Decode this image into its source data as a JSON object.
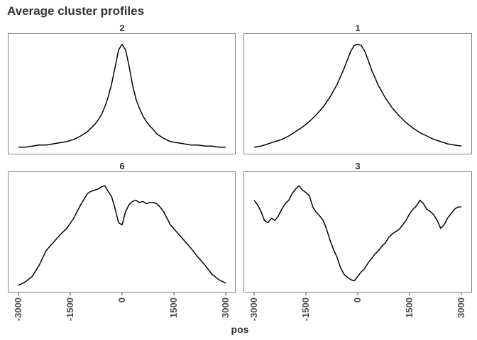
{
  "title": "Average cluster profiles",
  "colors": {
    "line": "#000000",
    "panel_border": "#7f7f7f",
    "text": "#333333"
  },
  "chart_data": {
    "type": "line",
    "title": "Average cluster profiles",
    "xlabel": "pos",
    "ylabel": "",
    "xlim": [
      -3000,
      3000
    ],
    "ylim": [
      0,
      1
    ],
    "x_ticks": [
      -3000,
      -1500,
      0,
      1500,
      3000
    ],
    "tick_labels": [
      "-3000",
      "-1500",
      "0",
      "1500",
      "3000"
    ],
    "layout": "2x2 facets, shared x axis on bottom row",
    "grid": false,
    "facets": [
      {
        "label": "2",
        "x": [
          -3000,
          -2800,
          -2600,
          -2400,
          -2200,
          -2000,
          -1800,
          -1600,
          -1400,
          -1200,
          -1000,
          -900,
          -800,
          -700,
          -600,
          -500,
          -400,
          -300,
          -200,
          -100,
          0,
          100,
          200,
          300,
          400,
          500,
          600,
          700,
          800,
          900,
          1000,
          1200,
          1400,
          1600,
          1800,
          2000,
          2200,
          2400,
          2600,
          2800,
          3000
        ],
        "values": [
          0.02,
          0.02,
          0.03,
          0.04,
          0.04,
          0.05,
          0.06,
          0.07,
          0.09,
          0.12,
          0.16,
          0.19,
          0.22,
          0.26,
          0.31,
          0.38,
          0.47,
          0.59,
          0.74,
          0.89,
          0.94,
          0.89,
          0.75,
          0.58,
          0.45,
          0.37,
          0.3,
          0.25,
          0.21,
          0.18,
          0.14,
          0.1,
          0.07,
          0.06,
          0.05,
          0.04,
          0.04,
          0.03,
          0.03,
          0.02,
          0.02
        ]
      },
      {
        "label": "1",
        "x": [
          -3000,
          -2800,
          -2600,
          -2400,
          -2200,
          -2000,
          -1800,
          -1600,
          -1400,
          -1200,
          -1000,
          -800,
          -600,
          -400,
          -300,
          -200,
          -100,
          0,
          100,
          200,
          300,
          400,
          600,
          800,
          1000,
          1200,
          1400,
          1600,
          1800,
          2000,
          2200,
          2400,
          2600,
          2800,
          3000
        ],
        "values": [
          0.02,
          0.03,
          0.05,
          0.07,
          0.09,
          0.12,
          0.16,
          0.2,
          0.25,
          0.31,
          0.38,
          0.47,
          0.58,
          0.72,
          0.8,
          0.88,
          0.93,
          0.94,
          0.93,
          0.88,
          0.8,
          0.71,
          0.57,
          0.46,
          0.37,
          0.3,
          0.24,
          0.19,
          0.15,
          0.12,
          0.09,
          0.07,
          0.05,
          0.04,
          0.03
        ]
      },
      {
        "label": "6",
        "x": [
          -3000,
          -2800,
          -2600,
          -2400,
          -2200,
          -2000,
          -1800,
          -1600,
          -1400,
          -1200,
          -1000,
          -900,
          -800,
          -700,
          -600,
          -500,
          -400,
          -300,
          -200,
          -100,
          0,
          100,
          200,
          300,
          400,
          500,
          600,
          700,
          800,
          900,
          1000,
          1100,
          1200,
          1400,
          1600,
          1800,
          2000,
          2200,
          2400,
          2600,
          2800,
          3000
        ],
        "values": [
          0.02,
          0.05,
          0.1,
          0.2,
          0.33,
          0.4,
          0.47,
          0.53,
          0.62,
          0.74,
          0.84,
          0.86,
          0.87,
          0.88,
          0.9,
          0.91,
          0.86,
          0.81,
          0.7,
          0.58,
          0.56,
          0.68,
          0.74,
          0.77,
          0.78,
          0.76,
          0.77,
          0.75,
          0.76,
          0.76,
          0.75,
          0.72,
          0.68,
          0.56,
          0.49,
          0.42,
          0.35,
          0.27,
          0.2,
          0.12,
          0.07,
          0.04
        ]
      },
      {
        "label": "3",
        "x": [
          -3000,
          -2900,
          -2800,
          -2700,
          -2600,
          -2500,
          -2400,
          -2300,
          -2200,
          -2100,
          -2000,
          -1900,
          -1800,
          -1700,
          -1600,
          -1500,
          -1400,
          -1300,
          -1200,
          -1100,
          -1000,
          -900,
          -800,
          -700,
          -600,
          -500,
          -400,
          -300,
          -200,
          -100,
          0,
          100,
          200,
          300,
          400,
          500,
          600,
          700,
          800,
          900,
          1000,
          1100,
          1200,
          1300,
          1400,
          1500,
          1600,
          1700,
          1800,
          1900,
          2000,
          2100,
          2200,
          2300,
          2400,
          2500,
          2600,
          2700,
          2800,
          2900,
          3000
        ],
        "values": [
          0.78,
          0.74,
          0.68,
          0.6,
          0.58,
          0.62,
          0.6,
          0.64,
          0.7,
          0.75,
          0.78,
          0.84,
          0.88,
          0.91,
          0.87,
          0.85,
          0.82,
          0.72,
          0.67,
          0.64,
          0.6,
          0.52,
          0.42,
          0.34,
          0.27,
          0.18,
          0.12,
          0.09,
          0.07,
          0.06,
          0.1,
          0.14,
          0.17,
          0.22,
          0.26,
          0.3,
          0.33,
          0.37,
          0.4,
          0.45,
          0.48,
          0.5,
          0.52,
          0.56,
          0.6,
          0.66,
          0.7,
          0.73,
          0.78,
          0.75,
          0.7,
          0.68,
          0.65,
          0.6,
          0.53,
          0.56,
          0.62,
          0.66,
          0.7,
          0.72,
          0.72
        ]
      }
    ]
  }
}
